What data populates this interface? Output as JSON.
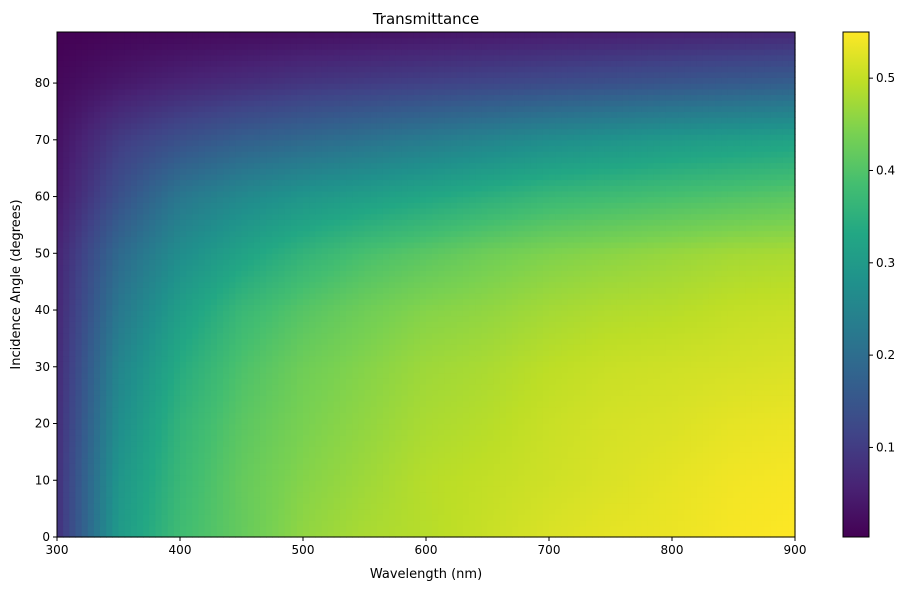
{
  "chart_data": {
    "type": "heatmap",
    "title": "Transmittance",
    "xlabel": "Wavelength (nm)",
    "ylabel": "Incidence Angle (degrees)",
    "xlim": [
      300,
      900
    ],
    "ylim": [
      0,
      89
    ],
    "xticks": [
      "300",
      "400",
      "500",
      "600",
      "700",
      "800",
      "900"
    ],
    "yticks": [
      "0",
      "10",
      "20",
      "30",
      "40",
      "50",
      "60",
      "70",
      "80"
    ],
    "colorbar": {
      "colormap": "viridis",
      "range": [
        0.003,
        0.55
      ],
      "ticks": [
        "0.1",
        "0.2",
        "0.3",
        "0.4",
        "0.5"
      ]
    },
    "x_samples_nm": [
      300,
      350,
      400,
      450,
      500,
      550,
      600,
      650,
      700,
      750,
      800,
      850,
      900
    ],
    "y_samples_deg": [
      0,
      10,
      20,
      30,
      40,
      50,
      60,
      70,
      80,
      89
    ],
    "values": [
      [
        0.08,
        0.3,
        0.38,
        0.42,
        0.46,
        0.48,
        0.49,
        0.505,
        0.52,
        0.53,
        0.535,
        0.545,
        0.55
      ],
      [
        0.08,
        0.29,
        0.37,
        0.42,
        0.45,
        0.47,
        0.49,
        0.5,
        0.51,
        0.52,
        0.53,
        0.54,
        0.545
      ],
      [
        0.075,
        0.27,
        0.36,
        0.41,
        0.44,
        0.46,
        0.48,
        0.49,
        0.505,
        0.515,
        0.52,
        0.53,
        0.535
      ],
      [
        0.07,
        0.25,
        0.34,
        0.395,
        0.43,
        0.45,
        0.47,
        0.48,
        0.495,
        0.505,
        0.51,
        0.515,
        0.52
      ],
      [
        0.065,
        0.22,
        0.31,
        0.37,
        0.405,
        0.43,
        0.45,
        0.46,
        0.475,
        0.485,
        0.49,
        0.5,
        0.505
      ],
      [
        0.06,
        0.19,
        0.27,
        0.32,
        0.36,
        0.39,
        0.41,
        0.43,
        0.445,
        0.455,
        0.465,
        0.475,
        0.48
      ],
      [
        0.04,
        0.14,
        0.22,
        0.26,
        0.29,
        0.31,
        0.33,
        0.35,
        0.37,
        0.38,
        0.39,
        0.4,
        0.41
      ],
      [
        0.03,
        0.1,
        0.14,
        0.17,
        0.19,
        0.21,
        0.23,
        0.25,
        0.27,
        0.285,
        0.3,
        0.31,
        0.32
      ],
      [
        0.015,
        0.04,
        0.06,
        0.075,
        0.09,
        0.1,
        0.11,
        0.12,
        0.13,
        0.14,
        0.15,
        0.16,
        0.17
      ],
      [
        0.003,
        0.01,
        0.015,
        0.02,
        0.025,
        0.03,
        0.035,
        0.04,
        0.045,
        0.05,
        0.055,
        0.06,
        0.065
      ]
    ]
  }
}
